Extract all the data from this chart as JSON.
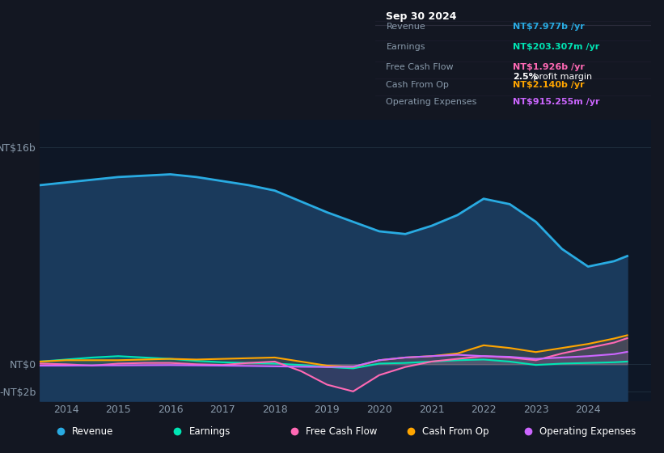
{
  "background_color": "#131722",
  "plot_bg_color": "#131722",
  "chart_area_color": "#0e1726",
  "ylabel_top": "NT$16b",
  "ylabel_zero": "NT$0",
  "ylabel_neg": "-NT$2b",
  "ylim_low": -2700000000,
  "ylim_high": 18000000000,
  "years": [
    2013.5,
    2014.0,
    2014.5,
    2015.0,
    2015.5,
    2016.0,
    2016.5,
    2017.0,
    2017.5,
    2018.0,
    2018.5,
    2019.0,
    2019.5,
    2020.0,
    2020.5,
    2021.0,
    2021.5,
    2022.0,
    2022.5,
    2023.0,
    2023.5,
    2024.0,
    2024.5,
    2024.75
  ],
  "revenue": [
    13200000000,
    13400000000,
    13600000000,
    13800000000,
    13900000000,
    14000000000,
    13800000000,
    13500000000,
    13200000000,
    12800000000,
    12000000000,
    11200000000,
    10500000000,
    9800000000,
    9600000000,
    10200000000,
    11000000000,
    12200000000,
    11800000000,
    10500000000,
    8500000000,
    7200000000,
    7600000000,
    7977000000
  ],
  "earnings": [
    200000000,
    350000000,
    500000000,
    600000000,
    500000000,
    400000000,
    250000000,
    150000000,
    100000000,
    50000000,
    -50000000,
    -200000000,
    -300000000,
    50000000,
    100000000,
    200000000,
    300000000,
    350000000,
    200000000,
    -50000000,
    50000000,
    100000000,
    150000000,
    203307000
  ],
  "free_cash_flow": [
    50000000,
    0,
    -100000000,
    50000000,
    100000000,
    100000000,
    0,
    -50000000,
    100000000,
    200000000,
    -500000000,
    -1500000000,
    -2000000000,
    -800000000,
    -200000000,
    200000000,
    400000000,
    600000000,
    500000000,
    300000000,
    800000000,
    1200000000,
    1600000000,
    1926000000
  ],
  "cash_from_op": [
    200000000,
    300000000,
    300000000,
    300000000,
    350000000,
    400000000,
    350000000,
    400000000,
    450000000,
    500000000,
    200000000,
    -100000000,
    -200000000,
    300000000,
    500000000,
    600000000,
    800000000,
    1400000000,
    1200000000,
    900000000,
    1200000000,
    1500000000,
    1900000000,
    2140000000
  ],
  "operating_expenses": [
    -100000000,
    -100000000,
    -80000000,
    -80000000,
    -70000000,
    -60000000,
    -80000000,
    -100000000,
    -120000000,
    -150000000,
    -180000000,
    -200000000,
    -180000000,
    300000000,
    500000000,
    600000000,
    700000000,
    600000000,
    550000000,
    400000000,
    500000000,
    600000000,
    750000000,
    915255000
  ],
  "revenue_color": "#29abe2",
  "earnings_color": "#00e5b4",
  "fcf_color": "#ff69b4",
  "cashop_color": "#ffa500",
  "opex_color": "#cc66ff",
  "revenue_fill_color": "#1a3a5c",
  "grid_color": "#1e2d3d",
  "text_color": "#8899aa",
  "white_color": "#ffffff",
  "xticks": [
    2014,
    2015,
    2016,
    2017,
    2018,
    2019,
    2020,
    2021,
    2022,
    2023,
    2024
  ],
  "tooltip_data": {
    "date": "Sep 30 2024",
    "revenue_label": "Revenue",
    "revenue_val": "NT$7.977b",
    "revenue_color": "#29abe2",
    "earnings_label": "Earnings",
    "earnings_val": "NT$203.307m",
    "earnings_color": "#00e5b4",
    "margin_label": "2.5%",
    "margin_text": " profit margin",
    "fcf_label": "Free Cash Flow",
    "fcf_val": "NT$1.926b",
    "fcf_color": "#ff69b4",
    "cashop_label": "Cash From Op",
    "cashop_val": "NT$2.140b",
    "cashop_color": "#ffa500",
    "opex_label": "Operating Expenses",
    "opex_val": "NT$915.255m",
    "opex_color": "#cc66ff"
  },
  "legend_items": [
    {
      "label": "Revenue",
      "color": "#29abe2"
    },
    {
      "label": "Earnings",
      "color": "#00e5b4"
    },
    {
      "label": "Free Cash Flow",
      "color": "#ff69b4"
    },
    {
      "label": "Cash From Op",
      "color": "#ffa500"
    },
    {
      "label": "Operating Expenses",
      "color": "#cc66ff"
    }
  ]
}
